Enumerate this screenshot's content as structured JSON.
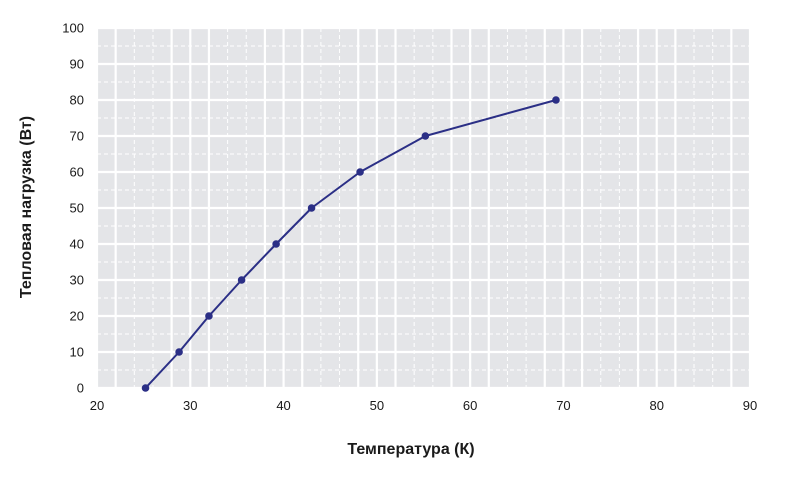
{
  "colors": {
    "plot_background": "#e4e5e8",
    "major_grid": "#ffffff",
    "minor_grid": "#ffffff",
    "series_line": "#2b2f86",
    "marker": "#2b2f86"
  },
  "chart_data": {
    "type": "line",
    "title": "",
    "xlabel": "Температура (К)",
    "ylabel": "Тепловая нагрузка (Вт)",
    "xlim": [
      20,
      90
    ],
    "ylim": [
      0,
      100
    ],
    "x_ticks": [
      "20",
      "30",
      "40",
      "50",
      "60",
      "70",
      "80",
      "90"
    ],
    "y_ticks": [
      "0",
      "10",
      "20",
      "30",
      "40",
      "50",
      "60",
      "70",
      "80",
      "90",
      "100"
    ],
    "grid": true,
    "legend": "none",
    "series": [
      {
        "x": [
          25.2,
          28.8,
          32.0,
          35.5,
          39.2,
          43.0,
          48.2,
          55.2,
          69.2
        ],
        "y": [
          0,
          10,
          20,
          30,
          40,
          50,
          60,
          70,
          80
        ]
      }
    ]
  }
}
